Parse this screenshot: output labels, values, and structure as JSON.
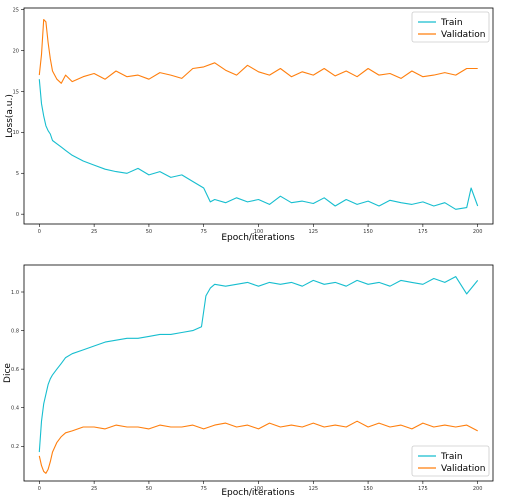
{
  "chart_data": [
    {
      "type": "line",
      "xlabel": "Epoch/iterations",
      "ylabel": "Loss(a.u.)",
      "xlim": [
        -7,
        207
      ],
      "ylim": [
        -1.2,
        25.2
      ],
      "xticks": [
        "0",
        "25",
        "50",
        "75",
        "100",
        "125",
        "150",
        "175",
        "200"
      ],
      "yticks": [
        "0",
        "5",
        "10",
        "15",
        "20",
        "25"
      ],
      "legend_position": "top-right",
      "series": [
        {
          "name": "Train",
          "color": "#17becf",
          "x": [
            0,
            1,
            2,
            3,
            4,
            5,
            6,
            8,
            10,
            12,
            15,
            20,
            25,
            30,
            35,
            40,
            45,
            50,
            55,
            60,
            65,
            70,
            75,
            78,
            80,
            85,
            90,
            95,
            100,
            105,
            110,
            115,
            120,
            125,
            130,
            135,
            140,
            145,
            150,
            155,
            160,
            165,
            170,
            175,
            180,
            185,
            190,
            195,
            197,
            200
          ],
          "values": [
            16.5,
            13.5,
            12.0,
            10.8,
            10.2,
            9.8,
            9.0,
            8.6,
            8.2,
            7.8,
            7.2,
            6.5,
            6.0,
            5.5,
            5.2,
            5.0,
            5.6,
            4.8,
            5.2,
            4.5,
            4.8,
            4.0,
            3.2,
            1.5,
            1.8,
            1.4,
            2.0,
            1.5,
            1.8,
            1.2,
            2.2,
            1.4,
            1.6,
            1.3,
            2.0,
            1.0,
            1.8,
            1.2,
            1.6,
            1.0,
            1.7,
            1.4,
            1.2,
            1.5,
            1.0,
            1.4,
            0.6,
            0.8,
            3.2,
            1.0
          ]
        },
        {
          "name": "Validation",
          "color": "#ff7f0e",
          "x": [
            0,
            1,
            2,
            3,
            4,
            5,
            6,
            8,
            10,
            12,
            15,
            20,
            25,
            30,
            35,
            40,
            45,
            50,
            55,
            60,
            65,
            70,
            75,
            80,
            85,
            90,
            95,
            100,
            105,
            110,
            115,
            120,
            125,
            130,
            135,
            140,
            145,
            150,
            155,
            160,
            165,
            170,
            175,
            180,
            185,
            190,
            195,
            200
          ],
          "values": [
            17.0,
            19.5,
            23.8,
            23.5,
            21.0,
            19.0,
            17.5,
            16.5,
            16.0,
            17.0,
            16.2,
            16.8,
            17.2,
            16.5,
            17.5,
            16.8,
            17.0,
            16.5,
            17.3,
            17.0,
            16.6,
            17.8,
            18.0,
            18.5,
            17.6,
            17.0,
            18.2,
            17.4,
            17.0,
            17.8,
            16.8,
            17.4,
            17.0,
            17.8,
            16.9,
            17.5,
            16.8,
            17.8,
            17.0,
            17.2,
            16.6,
            17.5,
            16.8,
            17.0,
            17.3,
            17.0,
            17.8,
            17.8
          ]
        }
      ]
    },
    {
      "type": "line",
      "xlabel": "Epoch/iterations",
      "ylabel": "Dice",
      "xlim": [
        -7,
        207
      ],
      "ylim": [
        0.02,
        1.14
      ],
      "xticks": [
        "0",
        "25",
        "50",
        "75",
        "100",
        "125",
        "150",
        "175",
        "200"
      ],
      "yticks": [
        "0.2",
        "0.4",
        "0.6",
        "0.8",
        "1.0"
      ],
      "legend_position": "bottom-right",
      "series": [
        {
          "name": "Train",
          "color": "#17becf",
          "x": [
            0,
            1,
            2,
            3,
            4,
            5,
            6,
            8,
            10,
            12,
            15,
            20,
            25,
            30,
            35,
            40,
            45,
            50,
            55,
            60,
            65,
            70,
            74,
            76,
            78,
            80,
            85,
            90,
            95,
            100,
            105,
            110,
            115,
            120,
            125,
            130,
            135,
            140,
            145,
            150,
            155,
            160,
            165,
            170,
            175,
            180,
            185,
            190,
            195,
            200
          ],
          "values": [
            0.17,
            0.33,
            0.42,
            0.47,
            0.52,
            0.55,
            0.57,
            0.6,
            0.63,
            0.66,
            0.68,
            0.7,
            0.72,
            0.74,
            0.75,
            0.76,
            0.76,
            0.77,
            0.78,
            0.78,
            0.79,
            0.8,
            0.82,
            0.98,
            1.02,
            1.04,
            1.03,
            1.04,
            1.05,
            1.03,
            1.05,
            1.04,
            1.05,
            1.03,
            1.06,
            1.04,
            1.05,
            1.03,
            1.06,
            1.04,
            1.05,
            1.03,
            1.06,
            1.05,
            1.04,
            1.07,
            1.05,
            1.08,
            0.99,
            1.06
          ]
        },
        {
          "name": "Validation",
          "color": "#ff7f0e",
          "x": [
            0,
            1,
            2,
            3,
            4,
            5,
            6,
            8,
            10,
            12,
            15,
            20,
            25,
            30,
            35,
            40,
            45,
            50,
            55,
            60,
            65,
            70,
            75,
            80,
            85,
            90,
            95,
            100,
            105,
            110,
            115,
            120,
            125,
            130,
            135,
            140,
            145,
            150,
            155,
            160,
            165,
            170,
            175,
            180,
            185,
            190,
            195,
            200
          ],
          "values": [
            0.15,
            0.1,
            0.07,
            0.06,
            0.08,
            0.12,
            0.17,
            0.22,
            0.25,
            0.27,
            0.28,
            0.3,
            0.3,
            0.29,
            0.31,
            0.3,
            0.3,
            0.29,
            0.31,
            0.3,
            0.3,
            0.31,
            0.29,
            0.31,
            0.32,
            0.3,
            0.31,
            0.29,
            0.32,
            0.3,
            0.31,
            0.3,
            0.32,
            0.3,
            0.31,
            0.3,
            0.33,
            0.3,
            0.32,
            0.3,
            0.31,
            0.29,
            0.32,
            0.3,
            0.31,
            0.3,
            0.31,
            0.28
          ]
        }
      ]
    }
  ]
}
